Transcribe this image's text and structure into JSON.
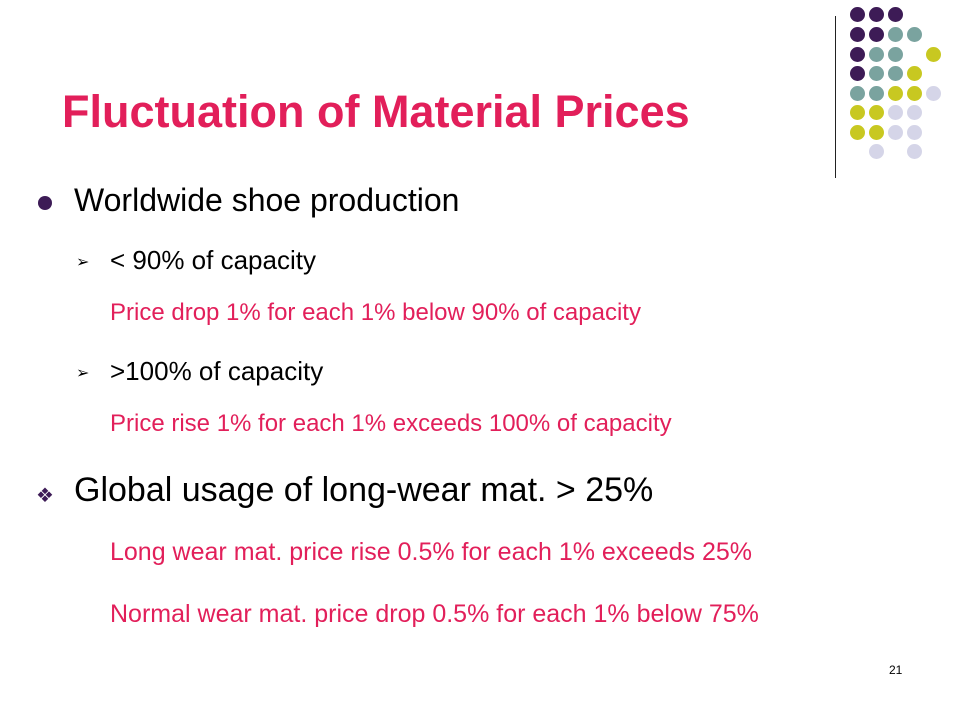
{
  "slide": {
    "title": "Fluctuation of Material Prices",
    "bullets": {
      "main1": "Worldwide shoe production",
      "sub1": "< 90% of capacity",
      "sub1_note": "Price drop 1% for each 1% below 90% of capacity",
      "sub2": ">100% of capacity",
      "sub2_note": "Price rise 1% for each 1% exceeds 100% of capacity",
      "main2": "Global usage of long-wear mat. > 25%",
      "main2_note1": "Long wear mat. price rise 0.5% for each 1% exceeds 25%",
      "main2_note2": "Normal wear mat. price drop 0.5% for each 1% below 75%"
    },
    "page_number": "21"
  },
  "colors": {
    "accent": "#e21f5a",
    "purple": "#3d1b56",
    "teal": "#7aa39f",
    "lime": "#c8c821",
    "lavender": "#d5d5e8"
  },
  "icons": {
    "bullet_round": "filled-circle-bullet",
    "bullet_arrow": "arrow-bullet",
    "bullet_diamond": "diamond-bullet"
  }
}
